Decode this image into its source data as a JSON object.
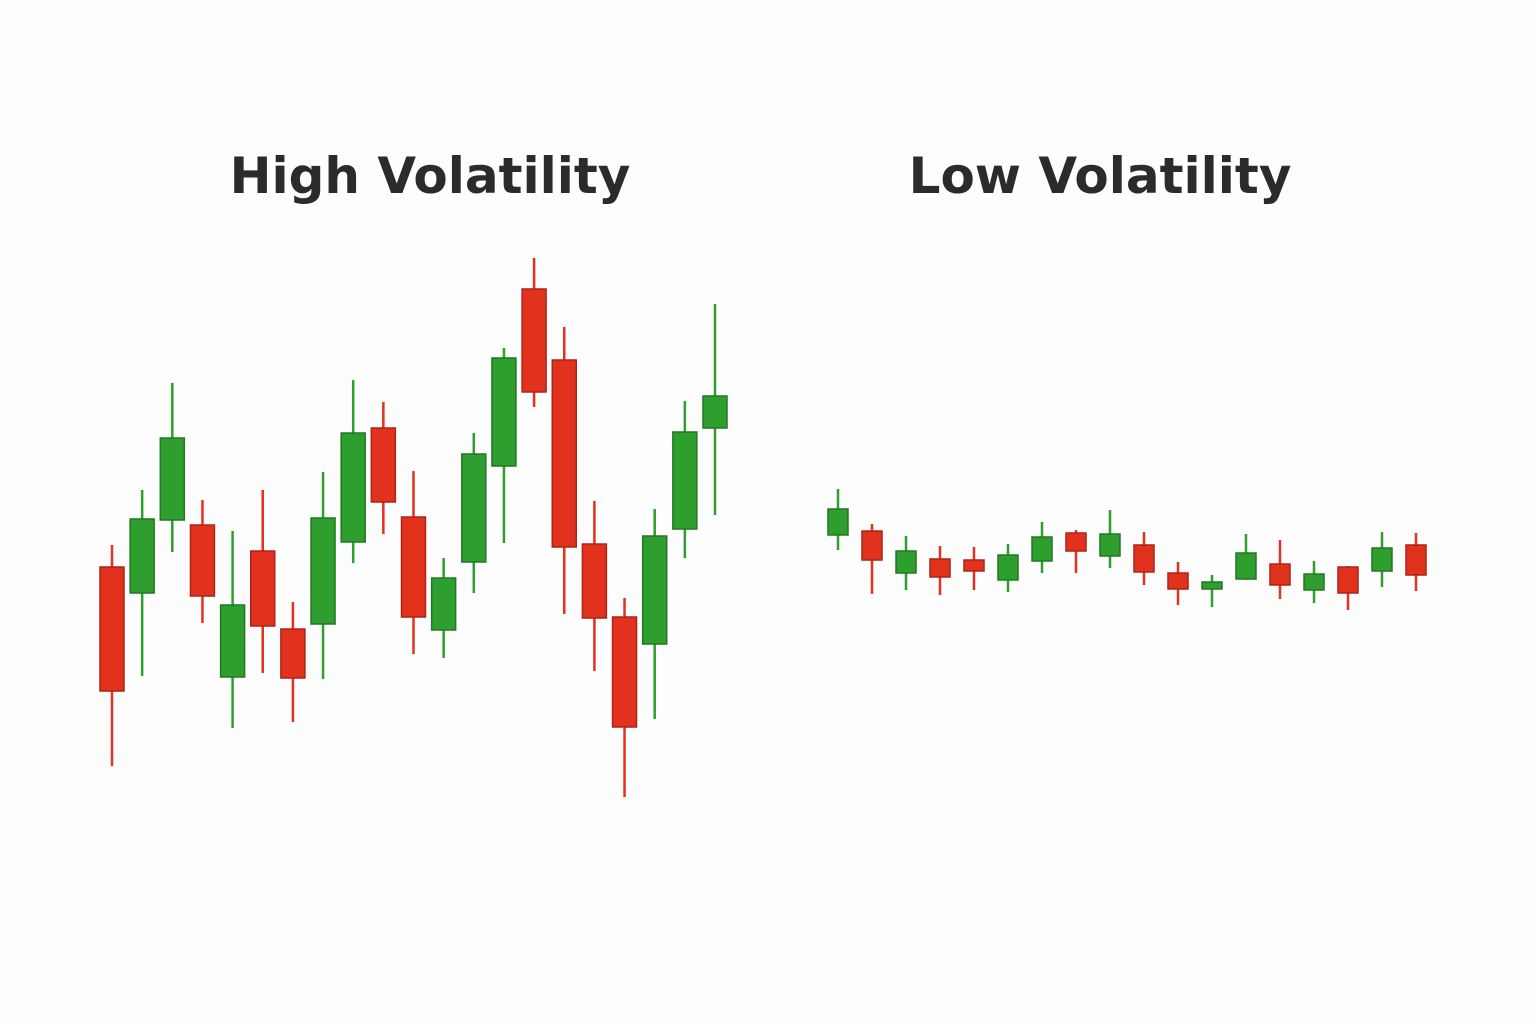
{
  "chart_data": [
    {
      "type": "candlestick",
      "title": "High Volatility",
      "up_color": "#2e9e2e",
      "down_color": "#e2311d",
      "ylim": [
        0,
        1024
      ],
      "open": [
        457,
        431,
        504,
        499,
        347,
        473,
        395,
        400,
        482,
        596,
        507,
        394,
        462,
        558,
        735,
        664,
        480,
        407,
        380,
        495,
        596
      ],
      "high": [
        479,
        534,
        641,
        524,
        493,
        534,
        422,
        552,
        644,
        622,
        553,
        466,
        591,
        676,
        766,
        697,
        523,
        426,
        515,
        623,
        720
      ],
      "low": [
        258,
        348,
        472,
        401,
        296,
        351,
        302,
        345,
        461,
        490,
        370,
        366,
        431,
        481,
        617,
        410,
        353,
        227,
        305,
        466,
        509
      ],
      "close": [
        333,
        505,
        586,
        428,
        419,
        398,
        346,
        506,
        591,
        522,
        407,
        446,
        570,
        666,
        632,
        477,
        406,
        297,
        488,
        592,
        628
      ]
    },
    {
      "type": "candlestick",
      "title": "Low Volatility",
      "up_color": "#2e9e2e",
      "down_color": "#e2311d",
      "ylim": [
        0,
        1024
      ],
      "open": [
        489,
        493,
        451,
        465,
        464,
        444,
        463,
        491,
        468,
        479,
        451,
        435,
        445,
        460,
        434,
        457,
        453,
        479
      ],
      "high": [
        535,
        500,
        488,
        478,
        477,
        480,
        502,
        494,
        514,
        492,
        462,
        449,
        490,
        484,
        463,
        458,
        492,
        491
      ],
      "low": [
        474,
        430,
        434,
        429,
        434,
        432,
        451,
        451,
        456,
        439,
        419,
        417,
        444,
        425,
        421,
        414,
        437,
        433
      ],
      "close": [
        515,
        464,
        473,
        447,
        453,
        469,
        487,
        473,
        490,
        452,
        435,
        442,
        471,
        439,
        450,
        431,
        476,
        449
      ]
    }
  ]
}
